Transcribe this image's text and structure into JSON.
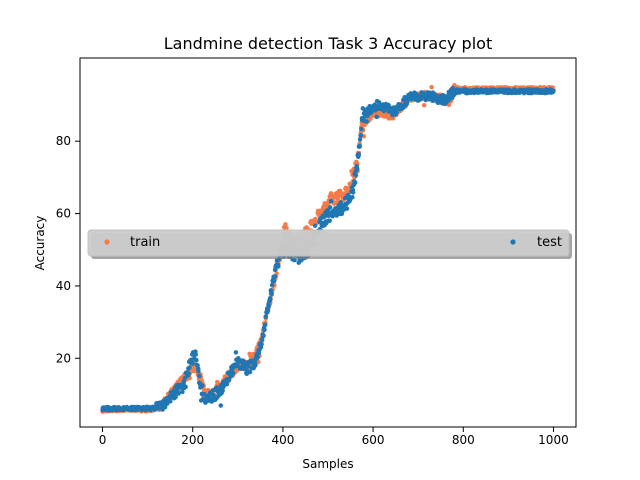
{
  "chart_data": {
    "type": "scatter",
    "title": "Landmine detection Task 3 Accuracy plot",
    "xlabel": "Samples",
    "ylabel": "Accuracy",
    "xlim": [
      -50,
      1050
    ],
    "ylim": [
      1,
      103
    ],
    "xticks": [
      0,
      200,
      400,
      600,
      800,
      1000
    ],
    "yticks": [
      20,
      40,
      60,
      80
    ],
    "grid": false,
    "legend": {
      "placement": "center",
      "entries": [
        "train",
        "test"
      ]
    },
    "series": [
      {
        "name": "train",
        "color": "#f47b4b",
        "knots": [
          [
            0,
            5.6
          ],
          [
            60,
            5.8
          ],
          [
            110,
            5.6
          ],
          [
            135,
            7.5
          ],
          [
            160,
            11.5
          ],
          [
            180,
            14
          ],
          [
            200,
            18
          ],
          [
            210,
            17
          ],
          [
            220,
            13
          ],
          [
            230,
            10
          ],
          [
            245,
            10
          ],
          [
            260,
            12
          ],
          [
            280,
            15
          ],
          [
            300,
            18
          ],
          [
            320,
            18
          ],
          [
            340,
            21
          ],
          [
            355,
            26
          ],
          [
            365,
            33
          ],
          [
            375,
            38
          ],
          [
            385,
            44
          ],
          [
            395,
            50
          ],
          [
            405,
            56
          ],
          [
            420,
            52
          ],
          [
            440,
            53
          ],
          [
            455,
            55
          ],
          [
            470,
            58
          ],
          [
            490,
            61
          ],
          [
            505,
            64
          ],
          [
            520,
            64.5
          ],
          [
            535,
            65
          ],
          [
            550,
            68
          ],
          [
            565,
            74
          ],
          [
            575,
            84
          ],
          [
            585,
            86
          ],
          [
            600,
            88
          ],
          [
            620,
            88
          ],
          [
            640,
            87
          ],
          [
            660,
            89
          ],
          [
            680,
            92
          ],
          [
            700,
            92.5
          ],
          [
            740,
            92.5
          ],
          [
            770,
            91
          ],
          [
            780,
            94.5
          ],
          [
            1000,
            94.5
          ]
        ],
        "jitter": 1.1,
        "seed": 7
      },
      {
        "name": "test",
        "color": "#1f77b4",
        "knots": [
          [
            0,
            6.1
          ],
          [
            60,
            6.1
          ],
          [
            110,
            6.1
          ],
          [
            135,
            7
          ],
          [
            160,
            10.5
          ],
          [
            180,
            12.5
          ],
          [
            195,
            19
          ],
          [
            205,
            21
          ],
          [
            215,
            14
          ],
          [
            225,
            9
          ],
          [
            245,
            9.5
          ],
          [
            260,
            11
          ],
          [
            280,
            15
          ],
          [
            300,
            19
          ],
          [
            320,
            17
          ],
          [
            340,
            19
          ],
          [
            355,
            26
          ],
          [
            365,
            33
          ],
          [
            375,
            39
          ],
          [
            385,
            45
          ],
          [
            395,
            49
          ],
          [
            405,
            50
          ],
          [
            420,
            49
          ],
          [
            440,
            48
          ],
          [
            455,
            50
          ],
          [
            470,
            55
          ],
          [
            490,
            58
          ],
          [
            505,
            60
          ],
          [
            520,
            61
          ],
          [
            535,
            62
          ],
          [
            550,
            64
          ],
          [
            565,
            73
          ],
          [
            575,
            86
          ],
          [
            590,
            88.5
          ],
          [
            610,
            90
          ],
          [
            630,
            89.5
          ],
          [
            650,
            88
          ],
          [
            670,
            91
          ],
          [
            690,
            92.5
          ],
          [
            720,
            92.5
          ],
          [
            760,
            91.5
          ],
          [
            780,
            93.8
          ],
          [
            1000,
            93.8
          ]
        ],
        "jitter": 1.3,
        "seed": 19
      }
    ]
  }
}
